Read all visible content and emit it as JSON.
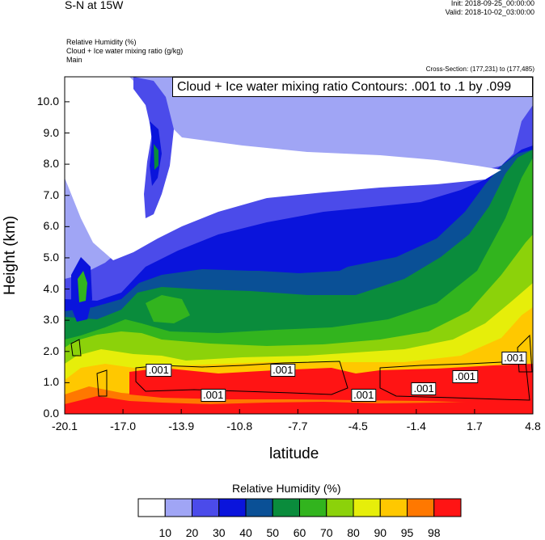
{
  "header": {
    "title": "S-N at 15W",
    "init": "Init: 2018-09-25_00:00:00",
    "valid": "Valid: 2018-10-02_03:00:00"
  },
  "fields": {
    "line1": "Relative Humidity   (%)",
    "line2": "Cloud + Ice water mixing ratio   (g/kg)",
    "line3": "Main"
  },
  "cross_section": "Cross-Section: (177,231) to (177,485)",
  "contour_title": "Cloud + Ice water mixing ratio Contours: .001 to .1 by .099",
  "colorbar": {
    "title": "Relative Humidity  (%)",
    "labels": [
      "10",
      "20",
      "30",
      "40",
      "50",
      "60",
      "70",
      "80",
      "90",
      "95",
      "98"
    ],
    "colors": [
      "#ffffff",
      "#a0a5f5",
      "#4b4bea",
      "#0a14dc",
      "#0a5096",
      "#0a8c3c",
      "#32b41e",
      "#8cd20a",
      "#e6ee0a",
      "#ffc800",
      "#ff7800",
      "#ff1414"
    ]
  },
  "chart_data": {
    "type": "heatmap",
    "title": "S-N at 15W",
    "xlabel": "latitude",
    "ylabel": "Height (km)",
    "xlim": [
      -20.1,
      4.8
    ],
    "ylim": [
      0.0,
      10.8
    ],
    "x_ticks": [
      "-20.1",
      "-17.0",
      "-13.9",
      "-10.8",
      "-7.7",
      "-4.5",
      "-1.4",
      "1.7",
      "4.8"
    ],
    "x_tick_values": [
      -20.1,
      -17.0,
      -13.9,
      -10.8,
      -7.7,
      -4.5,
      -1.4,
      1.7,
      4.8
    ],
    "y_ticks": [
      "0.0",
      "1.0",
      "2.0",
      "3.0",
      "4.0",
      "5.0",
      "6.0",
      "7.0",
      "8.0",
      "9.0",
      "10.0"
    ],
    "y_tick_values": [
      0,
      1,
      2,
      3,
      4,
      5,
      6,
      7,
      8,
      9,
      10
    ],
    "contour_labels": [
      {
        "text": ".001",
        "lat": -15.1,
        "z": 1.4
      },
      {
        "text": ".001",
        "lat": -8.5,
        "z": 1.4
      },
      {
        "text": ".001",
        "lat": -12.2,
        "z": 0.6
      },
      {
        "text": ".001",
        "lat": -4.2,
        "z": 0.6
      },
      {
        "text": ".001",
        "lat": -1.0,
        "z": 0.8
      },
      {
        "text": ".001",
        "lat": 1.2,
        "z": 1.2
      },
      {
        "text": ".001",
        "lat": 3.8,
        "z": 1.8
      }
    ]
  }
}
